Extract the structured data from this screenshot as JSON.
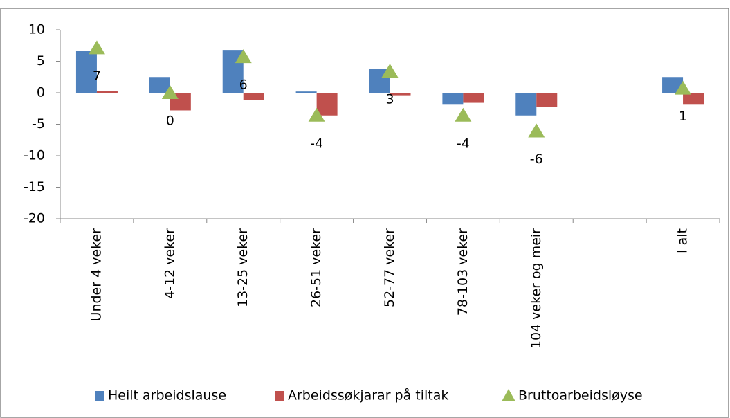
{
  "chart_data": {
    "type": "bar",
    "categories": [
      "Under 4 veker",
      "4-12 veker",
      "13-25 veker",
      "26-51 veker",
      "52-77 veker",
      "78-103 veker",
      "104 veker og meir",
      null,
      "I alt"
    ],
    "series": [
      {
        "name": "Heilt arbeidslause",
        "color": "#4f81bd",
        "type": "bar",
        "values": [
          6.6,
          2.5,
          6.8,
          0.2,
          3.8,
          -1.9,
          -3.6,
          null,
          2.5
        ]
      },
      {
        "name": "Arbeidssøkjarar på tiltak",
        "color": "#c0504d",
        "type": "bar",
        "values": [
          0.3,
          -2.8,
          -1.1,
          -3.6,
          -0.4,
          -1.6,
          -2.3,
          null,
          -1.9
        ]
      },
      {
        "name": "Bruttoarbeidsløyse",
        "color": "#9bbb59",
        "type": "triangle",
        "values": [
          7.1,
          0,
          5.7,
          -3.6,
          3.4,
          -3.6,
          -6.1,
          null,
          0.7
        ],
        "value_labels": [
          "7",
          "0",
          "6",
          "-4",
          "3",
          "-4",
          "-6",
          null,
          "1"
        ]
      }
    ],
    "ylim": [
      -20,
      10
    ],
    "yticks": [
      10,
      5,
      0,
      -5,
      -10,
      -15,
      -20
    ],
    "legend": "bottom"
  }
}
